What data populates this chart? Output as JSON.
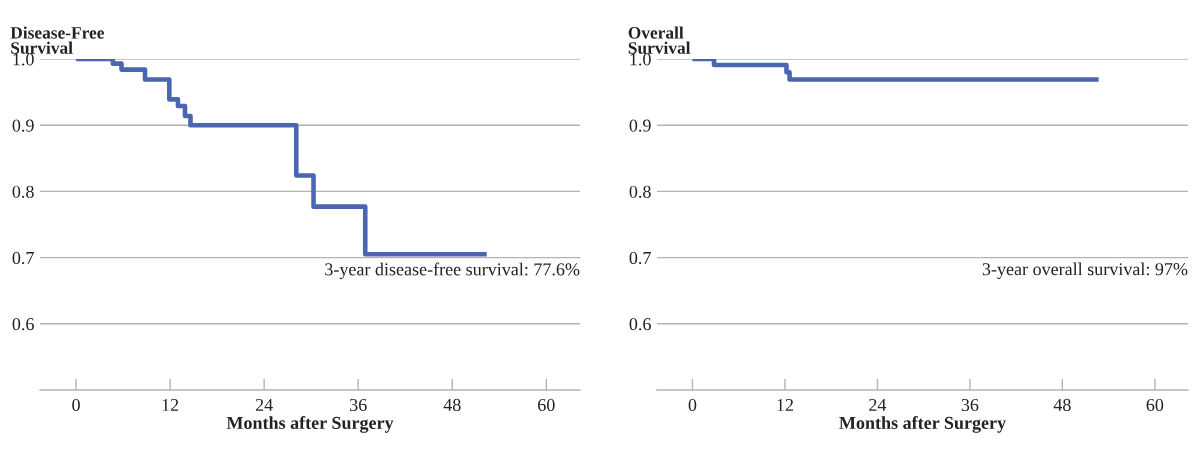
{
  "chart_data": [
    {
      "type": "step",
      "ylabel": "Disease-Free\nSurvival",
      "xlabel": "Months after Surgery",
      "x": [
        0,
        4.7,
        5.8,
        8.8,
        11.9,
        13.0,
        13.9,
        14.6,
        28.1,
        30.3,
        36.9,
        52.4
      ],
      "values": [
        1.0,
        0.993,
        0.984,
        0.969,
        0.939,
        0.929,
        0.914,
        0.9,
        0.824,
        0.777,
        0.705,
        0.705
      ],
      "color": "#4a66b0",
      "xlim": [
        -4.6,
        64.3
      ],
      "ylim": [
        0.5,
        1.0
      ],
      "xticks": [
        0,
        12,
        24,
        36,
        48,
        60
      ],
      "yticks": [
        {
          "value": 0.6,
          "label": "0.6"
        },
        {
          "value": 0.7,
          "label": "0.7"
        },
        {
          "value": 0.8,
          "label": "0.8"
        },
        {
          "value": 0.9,
          "label": "0.9"
        },
        {
          "value": 1.0,
          "label": "1.0"
        }
      ],
      "grid": "y",
      "annotations": [
        "3-year disease-free survival: 77.6%"
      ]
    },
    {
      "type": "step",
      "ylabel": "Overall\nSurvival",
      "xlabel": "Months after Surgery",
      "x": [
        0,
        2.8,
        12.2,
        12.6,
        52.7
      ],
      "values": [
        1.0,
        0.991,
        0.98,
        0.969,
        0.969
      ],
      "color": "#4a66b0",
      "xlim": [
        -4.6,
        64.3
      ],
      "ylim": [
        0.5,
        1.0
      ],
      "xticks": [
        0,
        12,
        24,
        36,
        48,
        60
      ],
      "yticks": [
        {
          "value": 0.6,
          "label": "0.6"
        },
        {
          "value": 0.7,
          "label": "0.7"
        },
        {
          "value": 0.8,
          "label": "0.8"
        },
        {
          "value": 0.9,
          "label": "0.9"
        },
        {
          "value": 1.0,
          "label": "1.0"
        }
      ],
      "grid": "y",
      "annotations": [
        "3-year overall survival: 97%"
      ]
    }
  ]
}
